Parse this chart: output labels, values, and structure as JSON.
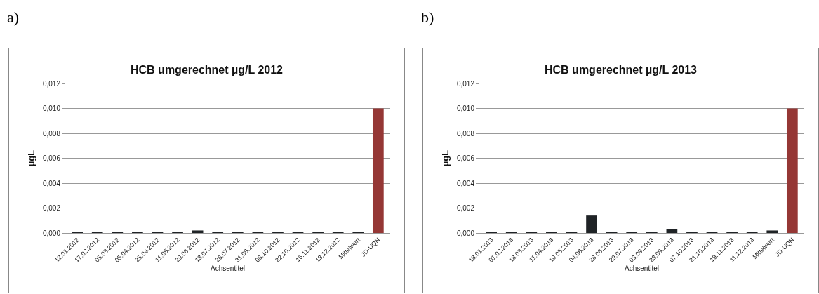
{
  "chart_data": [
    {
      "type": "bar",
      "title": "HCB umgerechnet µg/L 2012",
      "xlabel": "Achsentitel",
      "ylabel": "µgL",
      "annotations": [
        "a)"
      ],
      "categories": [
        "12.01.2012",
        "17.02.2012",
        "05.03.2012",
        "05.04.2012",
        "25.04.2012",
        "11.05.2012",
        "29.06.2012",
        "13.07.2012",
        "26.07.2012",
        "31.08.2012",
        "08.10.2012",
        "22.10.2012",
        "16.11.2012",
        "13.12.2012",
        "Mittelwert",
        "JD-UQN"
      ],
      "values": [
        0.0001,
        0.0001,
        0.0001,
        0.0001,
        0.0001,
        0.0001,
        0.0002,
        0.0001,
        0.0001,
        0.0001,
        0.0001,
        0.0001,
        0.0001,
        0.0001,
        0.0001,
        0.01
      ],
      "colors": [
        "#1f2326",
        "#1f2326",
        "#1f2326",
        "#1f2326",
        "#1f2326",
        "#1f2326",
        "#1f2326",
        "#1f2326",
        "#1f2326",
        "#1f2326",
        "#1f2326",
        "#1f2326",
        "#1f2326",
        "#1f2326",
        "#1f2326",
        "#953735"
      ],
      "ylim": [
        0,
        0.012
      ],
      "yticks": [
        {
          "value": 0,
          "label": "0,000"
        },
        {
          "value": 0.002,
          "label": "0,002"
        },
        {
          "value": 0.004,
          "label": "0,004"
        },
        {
          "value": 0.006,
          "label": "0,006"
        },
        {
          "value": 0.008,
          "label": "0,008"
        },
        {
          "value": 0.01,
          "label": "0,010"
        },
        {
          "value": 0.012,
          "label": "0,012"
        }
      ],
      "grid": "y"
    },
    {
      "type": "bar",
      "title": "HCB umgerechnet µg/L 2013",
      "xlabel": "Achsentitel",
      "ylabel": "µgL",
      "annotations": [
        "b)"
      ],
      "categories": [
        "18.01.2013",
        "01.02.2013",
        "18.03.2013",
        "11.04.2013",
        "10.05.2013",
        "04.06.2013",
        "28.06.2013",
        "29.07.2013",
        "03.09.2013",
        "23.09.2013",
        "07.10.2013",
        "21.10.2013",
        "19.11.2013",
        "11.12.2013",
        "Mittelwert",
        "JD-UQN"
      ],
      "values": [
        0.0001,
        0.0001,
        0.0001,
        0.0001,
        0.0001,
        0.0014,
        0.0001,
        0.0001,
        0.0001,
        0.0003,
        0.0001,
        0.0001,
        0.0001,
        0.0001,
        0.0002,
        0.01
      ],
      "colors": [
        "#1f2326",
        "#1f2326",
        "#1f2326",
        "#1f2326",
        "#1f2326",
        "#1f2326",
        "#1f2326",
        "#1f2326",
        "#1f2326",
        "#1f2326",
        "#1f2326",
        "#1f2326",
        "#1f2326",
        "#1f2326",
        "#1f2326",
        "#953735"
      ],
      "ylim": [
        0,
        0.012
      ],
      "yticks": [
        {
          "value": 0,
          "label": "0,000"
        },
        {
          "value": 0.002,
          "label": "0,002"
        },
        {
          "value": 0.004,
          "label": "0,004"
        },
        {
          "value": 0.006,
          "label": "0,006"
        },
        {
          "value": 0.008,
          "label": "0,008"
        },
        {
          "value": 0.01,
          "label": "0,010"
        },
        {
          "value": 0.012,
          "label": "0,012"
        }
      ],
      "grid": "y"
    }
  ]
}
